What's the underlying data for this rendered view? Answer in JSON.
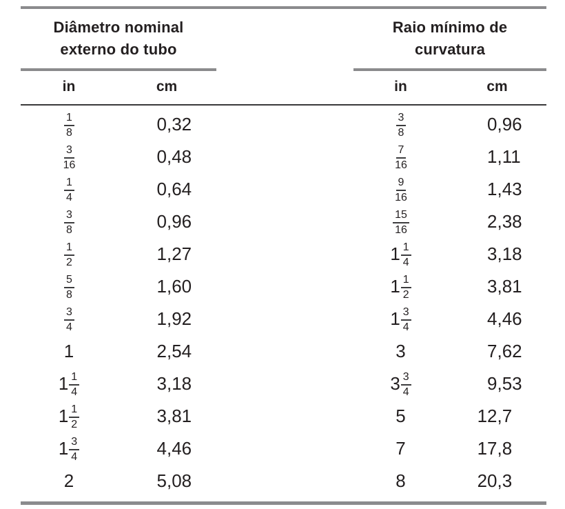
{
  "colors": {
    "text": "#231f20",
    "rule_gray": "#8b8b8d",
    "rule_dark": "#39383a",
    "background": "#ffffff"
  },
  "table": {
    "groups": [
      {
        "title": "Diâmetro nominal externo do tubo",
        "title_lines": [
          "Diâmetro nominal",
          "externo do tubo"
        ],
        "columns": [
          "in",
          "cm"
        ]
      },
      {
        "title": "Raio mínimo de curvatura",
        "title_lines": [
          "Raio mínimo de",
          "curvatura"
        ],
        "columns": [
          "in",
          "cm"
        ]
      }
    ],
    "rows": [
      {
        "diameter_in": {
          "num": "1",
          "den": "8"
        },
        "diameter_cm": "0,32",
        "radius_in": {
          "num": "3",
          "den": "8"
        },
        "radius_cm": "0,96"
      },
      {
        "diameter_in": {
          "num": "3",
          "den": "16"
        },
        "diameter_cm": "0,48",
        "radius_in": {
          "num": "7",
          "den": "16"
        },
        "radius_cm": "1,11"
      },
      {
        "diameter_in": {
          "num": "1",
          "den": "4"
        },
        "diameter_cm": "0,64",
        "radius_in": {
          "num": "9",
          "den": "16"
        },
        "radius_cm": "1,43"
      },
      {
        "diameter_in": {
          "num": "3",
          "den": "8"
        },
        "diameter_cm": "0,96",
        "radius_in": {
          "num": "15",
          "den": "16"
        },
        "radius_cm": "2,38"
      },
      {
        "diameter_in": {
          "num": "1",
          "den": "2"
        },
        "diameter_cm": "1,27",
        "radius_in": {
          "whole": "1",
          "num": "1",
          "den": "4"
        },
        "radius_cm": "3,18"
      },
      {
        "diameter_in": {
          "num": "5",
          "den": "8"
        },
        "diameter_cm": "1,60",
        "radius_in": {
          "whole": "1",
          "num": "1",
          "den": "2"
        },
        "radius_cm": "3,81"
      },
      {
        "diameter_in": {
          "num": "3",
          "den": "4"
        },
        "diameter_cm": "1,92",
        "radius_in": {
          "whole": "1",
          "num": "3",
          "den": "4"
        },
        "radius_cm": "4,46"
      },
      {
        "diameter_in": {
          "whole": "1"
        },
        "diameter_cm": "2,54",
        "radius_in": {
          "whole": "3"
        },
        "radius_cm": "7,62"
      },
      {
        "diameter_in": {
          "whole": "1",
          "num": "1",
          "den": "4"
        },
        "diameter_cm": "3,18",
        "radius_in": {
          "whole": "3",
          "num": "3",
          "den": "4"
        },
        "radius_cm": "9,53"
      },
      {
        "diameter_in": {
          "whole": "1",
          "num": "1",
          "den": "2"
        },
        "diameter_cm": "3,81",
        "radius_in": {
          "whole": "5"
        },
        "radius_cm": "12,7"
      },
      {
        "diameter_in": {
          "whole": "1",
          "num": "3",
          "den": "4"
        },
        "diameter_cm": "4,46",
        "radius_in": {
          "whole": "7"
        },
        "radius_cm": "17,8"
      },
      {
        "diameter_in": {
          "whole": "2"
        },
        "diameter_cm": "5,08",
        "radius_in": {
          "whole": "8"
        },
        "radius_cm": "20,3"
      }
    ]
  },
  "chart_data": {
    "type": "table",
    "column_groups": [
      "Diâmetro nominal externo do tubo",
      "Raio mínimo de curvatura"
    ],
    "columns": [
      "in",
      "cm",
      "in",
      "cm"
    ],
    "rows": [
      [
        "1/8",
        "0,32",
        "3/8",
        "0,96"
      ],
      [
        "3/16",
        "0,48",
        "7/16",
        "1,11"
      ],
      [
        "1/4",
        "0,64",
        "9/16",
        "1,43"
      ],
      [
        "3/8",
        "0,96",
        "15/16",
        "2,38"
      ],
      [
        "1/2",
        "1,27",
        "1 1/4",
        "3,18"
      ],
      [
        "5/8",
        "1,60",
        "1 1/2",
        "3,81"
      ],
      [
        "3/4",
        "1,92",
        "1 3/4",
        "4,46"
      ],
      [
        "1",
        "2,54",
        "3",
        "7,62"
      ],
      [
        "1 1/4",
        "3,18",
        "3 3/4",
        "9,53"
      ],
      [
        "1 1/2",
        "3,81",
        "5",
        "12,7"
      ],
      [
        "1 3/4",
        "4,46",
        "7",
        "17,8"
      ],
      [
        "2",
        "5,08",
        "8",
        "20,3"
      ]
    ]
  }
}
